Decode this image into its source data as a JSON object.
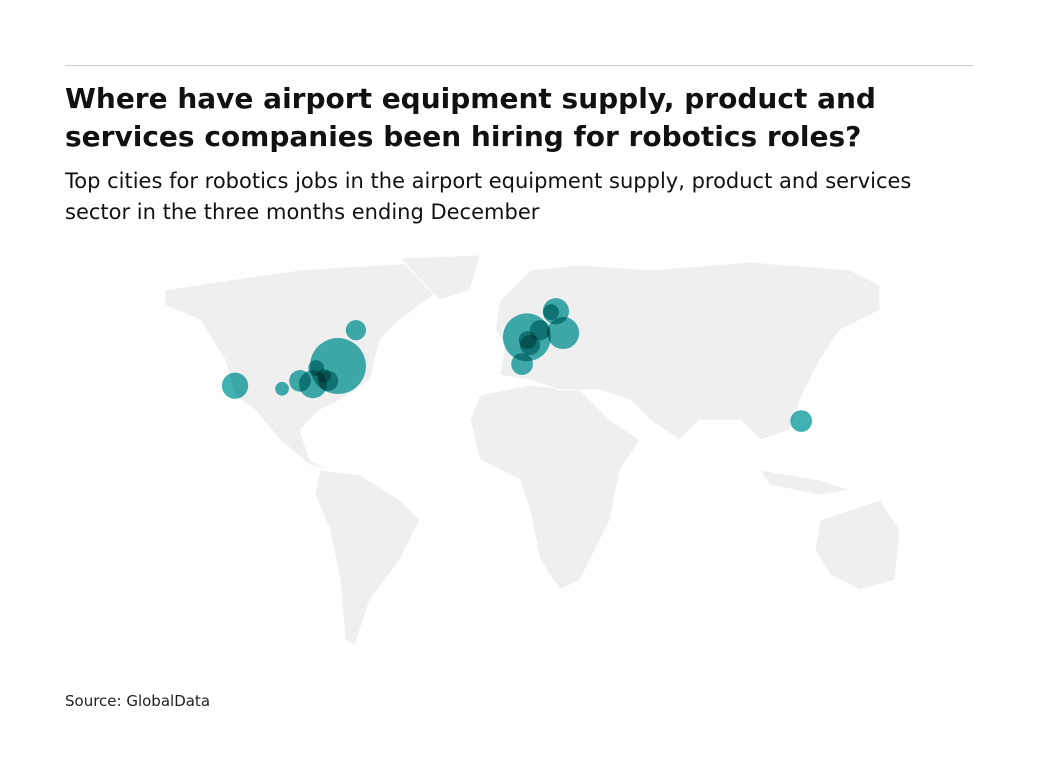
{
  "header": {
    "title": "Where have airport equipment supply, product and services companies been hiring for robotics roles?",
    "subtitle": "Top cities for robotics jobs in the airport equipment supply, product and services sector in the three months ending December"
  },
  "map": {
    "type": "bubble-map",
    "color": "#129e9e",
    "points": [
      {
        "lon": -122.0,
        "lat": 37.8,
        "size": 22
      },
      {
        "lon": -102.4,
        "lat": 36.8,
        "size": 6
      },
      {
        "lon": -94.9,
        "lat": 39.4,
        "size": 15
      },
      {
        "lon": -89.5,
        "lat": 38.3,
        "size": 25
      },
      {
        "lon": -71.6,
        "lat": 53.8,
        "size": 13
      },
      {
        "lon": -79.1,
        "lat": 44.0,
        "size": 100
      },
      {
        "lon": -88.2,
        "lat": 43.4,
        "size": 8
      },
      {
        "lon": -83.2,
        "lat": 39.4,
        "size": 13
      },
      {
        "lon": -84.9,
        "lat": 41.0,
        "size": 6
      },
      {
        "lon": -0.3,
        "lat": 52.0,
        "size": 73
      },
      {
        "lon": -2.3,
        "lat": 44.6,
        "size": 15
      },
      {
        "lon": 11.8,
        "lat": 58.2,
        "size": 22
      },
      {
        "lon": 9.8,
        "lat": 58.0,
        "size": 8
      },
      {
        "lon": 14.8,
        "lat": 53.1,
        "size": 33
      },
      {
        "lon": 1.0,
        "lat": 50.0,
        "size": 13
      },
      {
        "lon": 0.0,
        "lat": 51.3,
        "size": 10
      },
      {
        "lon": 5.2,
        "lat": 53.8,
        "size": 13
      },
      {
        "lon": 114.1,
        "lat": 25.3,
        "size": 15
      }
    ]
  },
  "footer": {
    "source": "Source: GlobalData"
  }
}
